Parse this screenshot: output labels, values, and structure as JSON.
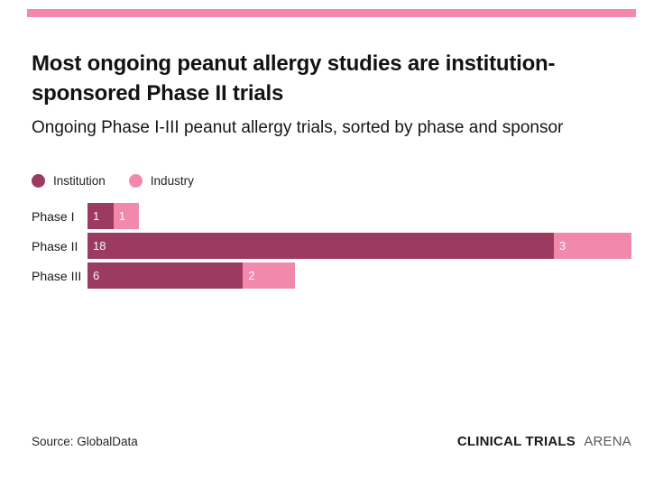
{
  "accent_color": "#f289ad",
  "title": "Most ongoing peanut allergy studies are institution-sponsored Phase II trials",
  "subtitle": "Ongoing Phase I-III peanut allergy trials, sorted by phase and sponsor",
  "legend": [
    {
      "label": "Institution",
      "color": "#9c3b62"
    },
    {
      "label": "Industry",
      "color": "#f289ad"
    }
  ],
  "chart_data": {
    "type": "bar",
    "orientation": "horizontal",
    "stacked": true,
    "grid": false,
    "legend_position": "top-left",
    "categories": [
      "Phase I",
      "Phase II",
      "Phase III"
    ],
    "series": [
      {
        "name": "Institution",
        "color": "#9c3b62",
        "values": [
          1,
          18,
          6
        ]
      },
      {
        "name": "Industry",
        "color": "#f289ad",
        "values": [
          1,
          3,
          2
        ]
      }
    ],
    "totals": [
      2,
      21,
      8
    ],
    "xlim": [
      0,
      21
    ],
    "value_labels": true
  },
  "footer": {
    "source": "Source: GlobalData",
    "brand_bold": "CLINICAL TRIALS",
    "brand_light": "ARENA"
  }
}
